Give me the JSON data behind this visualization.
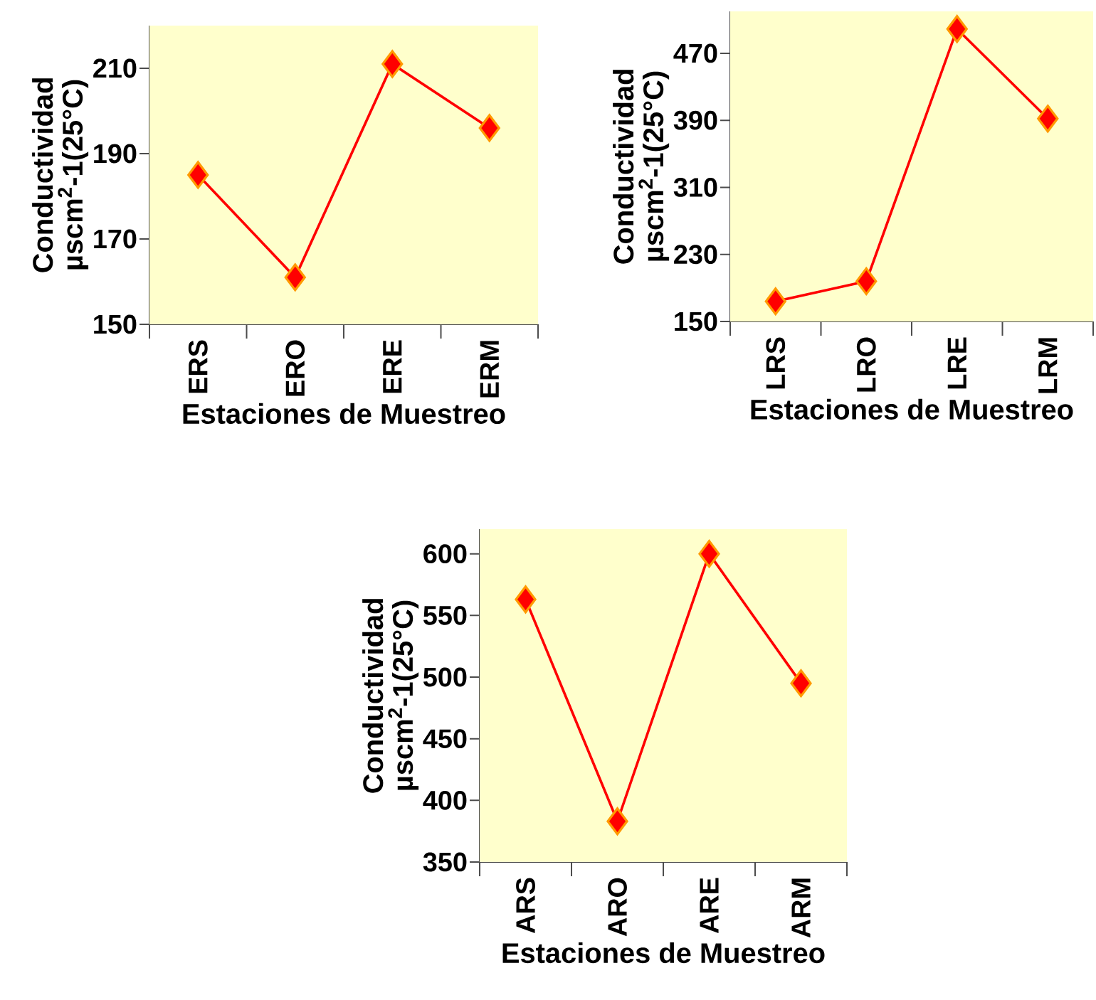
{
  "chart_data": [
    {
      "type": "line",
      "xlabel": "Estaciones de Muestreo",
      "ylabel": "Conductividad µscm$^{2}$-1(25°C)",
      "categories": [
        "ERS",
        "ERO",
        "ERE",
        "ERM"
      ],
      "values": [
        185,
        161,
        211,
        196
      ],
      "color": "#ff0000",
      "marker": "diamond",
      "ylim": [
        150,
        220
      ],
      "yticks": [
        150,
        170,
        190,
        210
      ]
    },
    {
      "type": "line",
      "xlabel": "Estaciones de Muestreo",
      "ylabel": "Conductividad µscm$^{2}$-1(25°C)",
      "categories": [
        "LRS",
        "LRO",
        "LRE",
        "LRM"
      ],
      "values": [
        174,
        198,
        499,
        392
      ],
      "color": "#ff0000",
      "marker": "diamond",
      "ylim": [
        150,
        520
      ],
      "yticks": [
        150,
        230,
        310,
        390,
        470
      ]
    },
    {
      "type": "line",
      "xlabel": "Estaciones de Muestreo",
      "ylabel": "Conductividad µscm$^{2}$-1(25°C)",
      "categories": [
        "ARS",
        "ARO",
        "ARE",
        "ARM"
      ],
      "values": [
        563,
        383,
        600,
        495
      ],
      "color": "#ff0000",
      "marker": "diamond",
      "ylim": [
        350,
        620
      ],
      "yticks": [
        350,
        400,
        450,
        500,
        550,
        600
      ]
    }
  ]
}
